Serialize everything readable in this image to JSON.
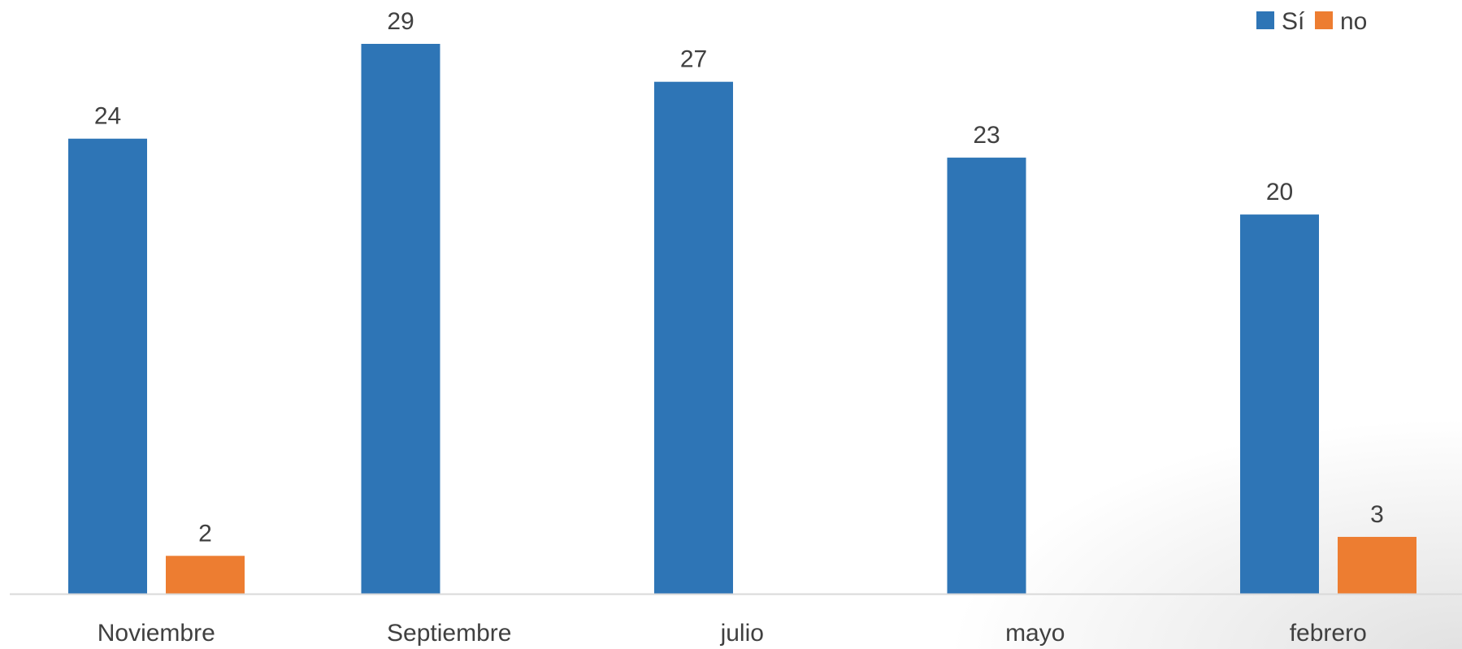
{
  "chart_data": {
    "type": "bar",
    "title": "",
    "xlabel": "",
    "ylabel": "",
    "categories": [
      "Noviembre",
      "Septiembre",
      "julio",
      "mayo",
      "febrero"
    ],
    "series": [
      {
        "name": "Sí",
        "color": "#2E75B6",
        "values": [
          24,
          29,
          27,
          23,
          20
        ]
      },
      {
        "name": "no",
        "color": "#ED7D31",
        "values": [
          2,
          null,
          null,
          null,
          3
        ]
      }
    ],
    "ylim": [
      0,
      29
    ],
    "grid": false,
    "legend": "top-right",
    "axis_line_color": "#D9D9D9"
  }
}
